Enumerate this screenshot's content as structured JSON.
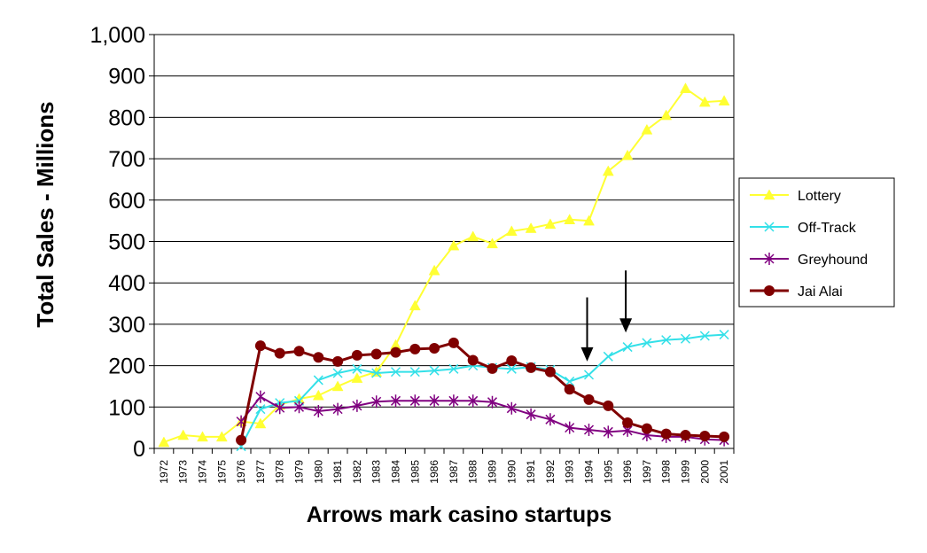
{
  "chart_data": {
    "type": "line",
    "title": "",
    "ylabel": "Total Sales  -  Millions",
    "xlabel": "Arrows mark casino startups",
    "ylim": [
      0,
      1000
    ],
    "yticks": [
      {
        "value": 0,
        "label": "0"
      },
      {
        "value": 100,
        "label": "100"
      },
      {
        "value": 200,
        "label": "200"
      },
      {
        "value": 300,
        "label": "300"
      },
      {
        "value": 400,
        "label": "400"
      },
      {
        "value": 500,
        "label": "500"
      },
      {
        "value": 600,
        "label": "600"
      },
      {
        "value": 700,
        "label": "700"
      },
      {
        "value": 800,
        "label": "800"
      },
      {
        "value": 900,
        "label": "900"
      },
      {
        "value": 1000,
        "label": "1,000"
      }
    ],
    "categories": [
      "1972",
      "1973",
      "1974",
      "1975",
      "1976",
      "1977",
      "1978",
      "1979",
      "1980",
      "1981",
      "1982",
      "1983",
      "1984",
      "1985",
      "1986",
      "1987",
      "1988",
      "1989",
      "1990",
      "1991",
      "1992",
      "1993",
      "1994",
      "1995",
      "1996",
      "1997",
      "1998",
      "1999",
      "2000",
      "2001"
    ],
    "grid": "horizontal",
    "legend_position": "right",
    "series": [
      {
        "name": "Lottery",
        "color": "#FFFF33",
        "marker": "triangle",
        "values": [
          15,
          32,
          28,
          28,
          65,
          60,
          105,
          120,
          128,
          150,
          170,
          185,
          250,
          345,
          430,
          490,
          512,
          495,
          525,
          532,
          542,
          553,
          550,
          670,
          708,
          770,
          805,
          870,
          837,
          840
        ]
      },
      {
        "name": "Off-Track",
        "color": "#33E0E8",
        "marker": "x",
        "values": [
          null,
          null,
          null,
          null,
          5,
          95,
          110,
          115,
          165,
          182,
          192,
          182,
          185,
          185,
          188,
          192,
          200,
          195,
          192,
          197,
          190,
          162,
          178,
          222,
          245,
          255,
          262,
          265,
          272,
          275
        ]
      },
      {
        "name": "Greyhound",
        "color": "#800080",
        "marker": "star",
        "values": [
          null,
          null,
          null,
          null,
          65,
          125,
          98,
          100,
          90,
          95,
          103,
          113,
          115,
          115,
          115,
          115,
          115,
          112,
          97,
          82,
          70,
          50,
          45,
          40,
          43,
          32,
          28,
          28,
          22,
          20
        ]
      },
      {
        "name": "Jai Alai",
        "color": "#800000",
        "marker": "circle",
        "values": [
          null,
          null,
          null,
          null,
          20,
          248,
          230,
          235,
          220,
          210,
          225,
          228,
          232,
          240,
          242,
          255,
          213,
          193,
          212,
          195,
          185,
          143,
          118,
          103,
          62,
          48,
          35,
          32,
          30,
          28
        ]
      }
    ],
    "annotations": [
      {
        "type": "arrow",
        "x": "1994",
        "y_from": 365,
        "y_to": 210
      },
      {
        "type": "arrow",
        "x": "1996",
        "y_from": 430,
        "y_to": 280
      }
    ]
  }
}
